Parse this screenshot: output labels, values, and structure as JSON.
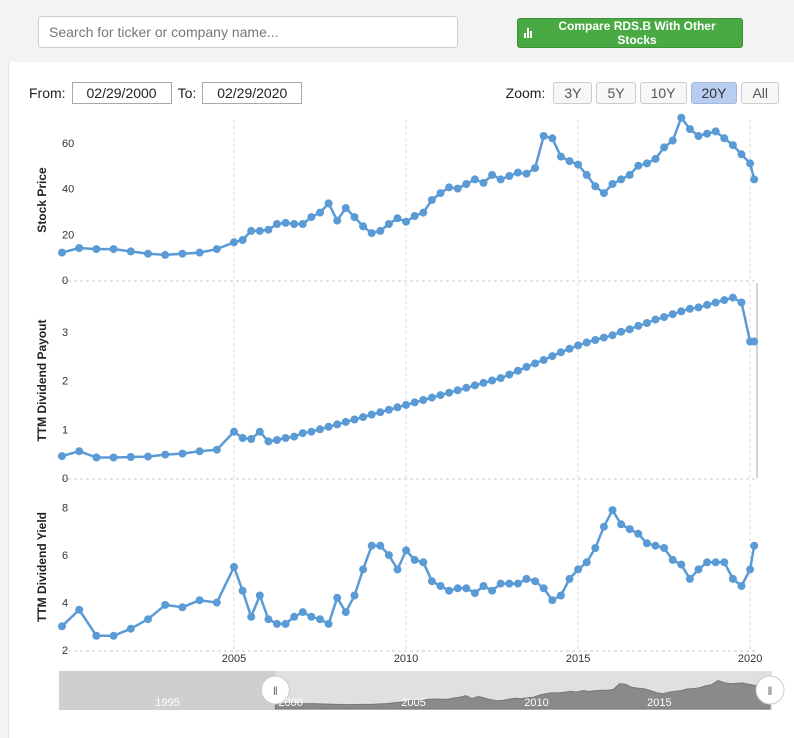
{
  "search": {
    "placeholder": "Search for ticker or company name..."
  },
  "compare": {
    "label": "Compare RDS.B With Other Stocks"
  },
  "range": {
    "from_label": "From:",
    "from_value": "02/29/2000",
    "to_label": "To:",
    "to_value": "02/29/2020"
  },
  "zoom": {
    "label": "Zoom:",
    "options": [
      "3Y",
      "5Y",
      "10Y",
      "20Y",
      "All"
    ],
    "active": "20Y"
  },
  "colors": {
    "series": "#5b9bd5",
    "accent_green": "#49a942",
    "active_zoom": "#b8cdf0"
  },
  "chart_data": [
    {
      "type": "line",
      "ylabel": "Stock Price",
      "ylim": [
        0,
        70
      ],
      "yticks": [
        0,
        20,
        40,
        60
      ],
      "x": [
        2000.0,
        2000.5,
        2001.0,
        2001.5,
        2002.0,
        2002.5,
        2003.0,
        2003.5,
        2004.0,
        2004.5,
        2005.0,
        2005.25,
        2005.5,
        2005.75,
        2006.0,
        2006.25,
        2006.5,
        2006.75,
        2007.0,
        2007.25,
        2007.5,
        2007.75,
        2008.0,
        2008.25,
        2008.5,
        2008.75,
        2009.0,
        2009.25,
        2009.5,
        2009.75,
        2010.0,
        2010.25,
        2010.5,
        2010.75,
        2011.0,
        2011.25,
        2011.5,
        2011.75,
        2012.0,
        2012.25,
        2012.5,
        2012.75,
        2013.0,
        2013.25,
        2013.5,
        2013.75,
        2014.0,
        2014.25,
        2014.5,
        2014.75,
        2015.0,
        2015.25,
        2015.5,
        2015.75,
        2016.0,
        2016.25,
        2016.5,
        2016.75,
        2017.0,
        2017.25,
        2017.5,
        2017.75,
        2018.0,
        2018.25,
        2018.5,
        2018.75,
        2019.0,
        2019.25,
        2019.5,
        2019.75,
        2020.0,
        2020.12
      ],
      "values": [
        12,
        14,
        13.5,
        13.5,
        12.5,
        11.5,
        11,
        11.5,
        12,
        13.5,
        16.5,
        17.5,
        21.5,
        21.5,
        22,
        24.5,
        25,
        24.5,
        24.5,
        27.5,
        29.5,
        33.5,
        26,
        31.5,
        27.5,
        23.5,
        20.5,
        21.5,
        24.5,
        27,
        25.5,
        28,
        29.5,
        35,
        38,
        40.5,
        40,
        42,
        44,
        42.5,
        46,
        44,
        45.5,
        47,
        46.5,
        49,
        63,
        62,
        54,
        52,
        50.5,
        46,
        41,
        38,
        42,
        44,
        46,
        50,
        51,
        53,
        58,
        61,
        71,
        66,
        63,
        64,
        65,
        62,
        59,
        55,
        51,
        44
      ]
    },
    {
      "type": "line",
      "ylabel": "TTM Dividend Payout",
      "ylim": [
        0,
        4
      ],
      "yticks": [
        0,
        1,
        2,
        3
      ],
      "x": [
        2000.0,
        2000.5,
        2001.0,
        2001.5,
        2002.0,
        2002.5,
        2003.0,
        2003.5,
        2004.0,
        2004.5,
        2005.0,
        2005.25,
        2005.5,
        2005.75,
        2006.0,
        2006.25,
        2006.5,
        2006.75,
        2007.0,
        2007.25,
        2007.5,
        2007.75,
        2008.0,
        2008.25,
        2008.5,
        2008.75,
        2009.0,
        2009.25,
        2009.5,
        2009.75,
        2010.0,
        2010.25,
        2010.5,
        2010.75,
        2011.0,
        2011.25,
        2011.5,
        2011.75,
        2012.0,
        2012.25,
        2012.5,
        2012.75,
        2013.0,
        2013.25,
        2013.5,
        2013.75,
        2014.0,
        2014.25,
        2014.5,
        2014.75,
        2015.0,
        2015.25,
        2015.5,
        2015.75,
        2016.0,
        2016.25,
        2016.5,
        2016.75,
        2017.0,
        2017.25,
        2017.5,
        2017.75,
        2018.0,
        2018.25,
        2018.5,
        2018.75,
        2019.0,
        2019.25,
        2019.5,
        2019.75,
        2020.0,
        2020.12
      ],
      "values": [
        0.45,
        0.55,
        0.42,
        0.42,
        0.43,
        0.44,
        0.48,
        0.5,
        0.55,
        0.58,
        0.95,
        0.82,
        0.8,
        0.95,
        0.75,
        0.78,
        0.82,
        0.85,
        0.92,
        0.95,
        1.0,
        1.05,
        1.1,
        1.15,
        1.2,
        1.25,
        1.3,
        1.35,
        1.4,
        1.45,
        1.5,
        1.55,
        1.6,
        1.65,
        1.7,
        1.75,
        1.8,
        1.85,
        1.9,
        1.95,
        2.0,
        2.05,
        2.12,
        2.2,
        2.28,
        2.35,
        2.42,
        2.5,
        2.58,
        2.65,
        2.72,
        2.78,
        2.83,
        2.88,
        2.93,
        3.0,
        3.05,
        3.12,
        3.18,
        3.25,
        3.3,
        3.36,
        3.42,
        3.47,
        3.5,
        3.55,
        3.6,
        3.65,
        3.7,
        3.6,
        2.8,
        2.8
      ]
    },
    {
      "type": "line",
      "ylabel": "TTM Dividend Yield",
      "ylim": [
        2,
        9
      ],
      "yticks": [
        2,
        4,
        6,
        8
      ],
      "x": [
        2000.0,
        2000.5,
        2001.0,
        2001.5,
        2002.0,
        2002.5,
        2003.0,
        2003.5,
        2004.0,
        2004.5,
        2005.0,
        2005.25,
        2005.5,
        2005.75,
        2006.0,
        2006.25,
        2006.5,
        2006.75,
        2007.0,
        2007.25,
        2007.5,
        2007.75,
        2008.0,
        2008.25,
        2008.5,
        2008.75,
        2009.0,
        2009.25,
        2009.5,
        2009.75,
        2010.0,
        2010.25,
        2010.5,
        2010.75,
        2011.0,
        2011.25,
        2011.5,
        2011.75,
        2012.0,
        2012.25,
        2012.5,
        2012.75,
        2013.0,
        2013.25,
        2013.5,
        2013.75,
        2014.0,
        2014.25,
        2014.5,
        2014.75,
        2015.0,
        2015.25,
        2015.5,
        2015.75,
        2016.0,
        2016.25,
        2016.5,
        2016.75,
        2017.0,
        2017.25,
        2017.5,
        2017.75,
        2018.0,
        2018.25,
        2018.5,
        2018.75,
        2019.0,
        2019.25,
        2019.5,
        2019.75,
        2020.0,
        2020.12
      ],
      "values": [
        3.0,
        3.7,
        2.6,
        2.6,
        2.9,
        3.3,
        3.9,
        3.8,
        4.1,
        4.0,
        5.5,
        4.5,
        3.4,
        4.3,
        3.3,
        3.1,
        3.1,
        3.4,
        3.6,
        3.4,
        3.3,
        3.1,
        4.2,
        3.6,
        4.3,
        5.4,
        6.4,
        6.4,
        6.0,
        5.4,
        6.2,
        5.8,
        5.7,
        4.9,
        4.7,
        4.5,
        4.6,
        4.6,
        4.4,
        4.7,
        4.5,
        4.8,
        4.8,
        4.8,
        5.0,
        4.9,
        4.6,
        4.1,
        4.3,
        5.0,
        5.4,
        5.7,
        6.3,
        7.2,
        7.9,
        7.3,
        7.1,
        6.9,
        6.5,
        6.4,
        6.3,
        5.8,
        5.6,
        5.0,
        5.4,
        5.7,
        5.7,
        5.7,
        5.0,
        4.7,
        5.4,
        6.4
      ]
    }
  ],
  "x_axis": {
    "ticks": [
      2005,
      2010,
      2015,
      2020
    ],
    "tick_labels": [
      "2005",
      "2010",
      "2015",
      "2020"
    ],
    "xlim": [
      2000.0,
      2020.2
    ]
  },
  "navigator": {
    "tick_labels": [
      "1995",
      "2000",
      "2005",
      "2010",
      "2015"
    ],
    "ticks": [
      1995,
      2000,
      2005,
      2010,
      2015
    ],
    "xlim": [
      1991.2,
      2020.2
    ],
    "selected_range": [
      2000.0,
      2020.12
    ],
    "handle_glyph": "‖"
  }
}
